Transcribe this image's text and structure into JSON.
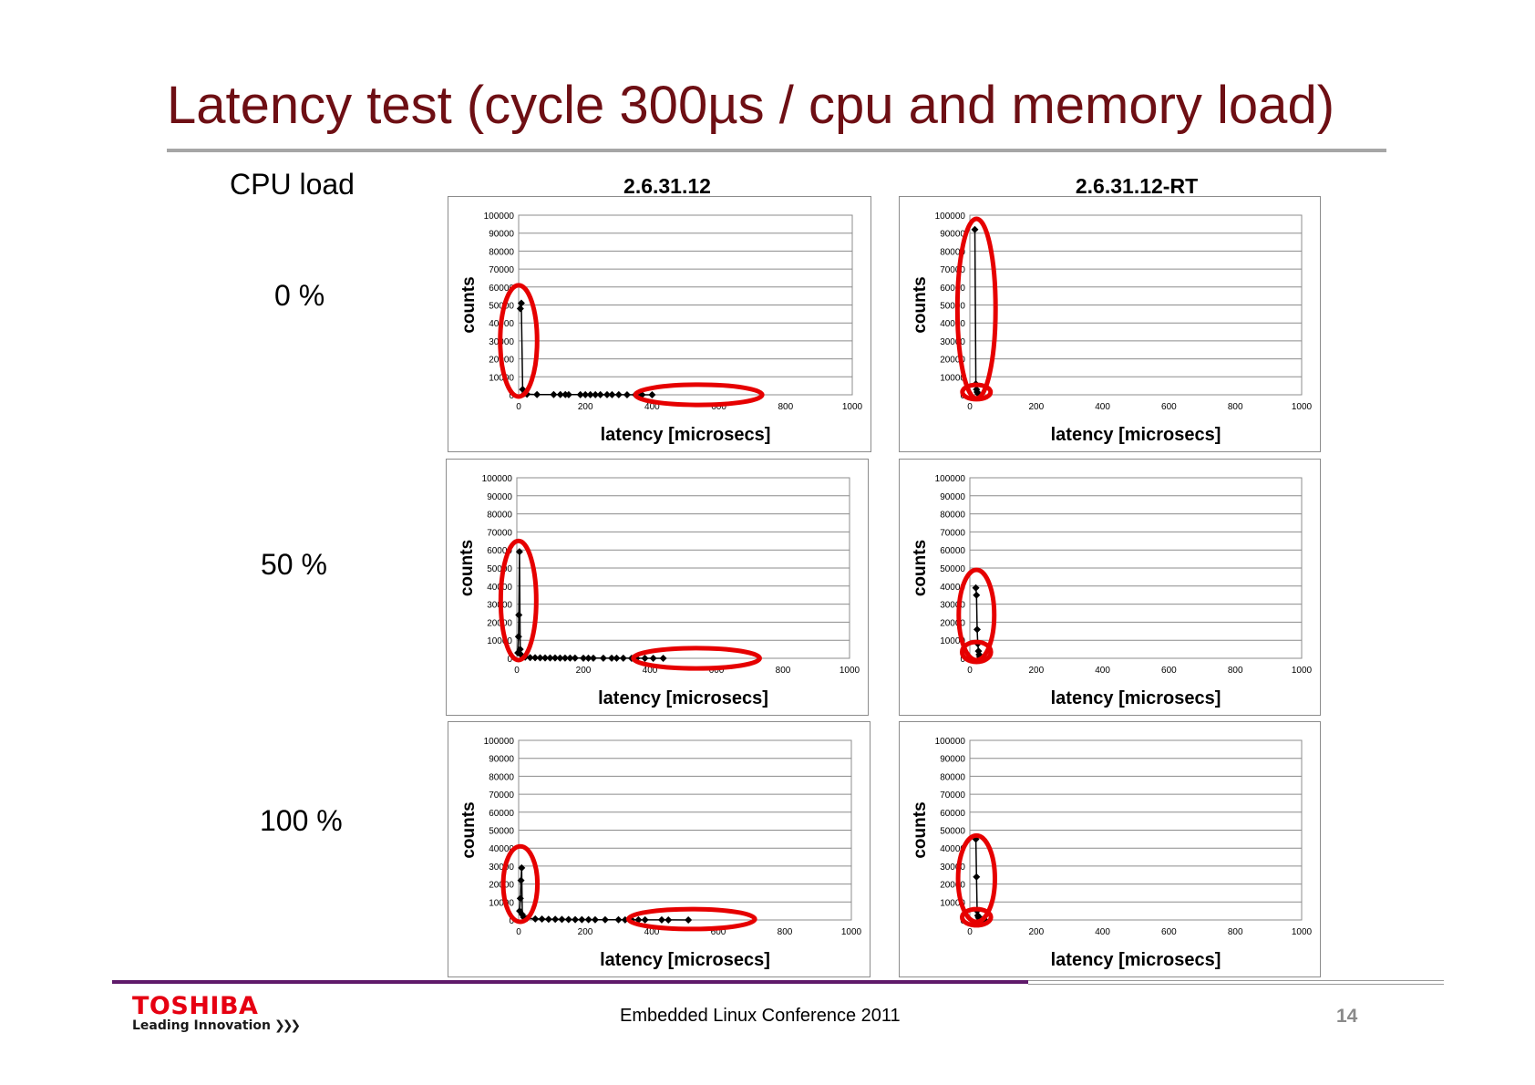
{
  "slide": {
    "title": "Latency test (cycle 300µs / cpu and memory load)",
    "cpu_load_label": "CPU load",
    "rows": [
      "0 %",
      "50 %",
      "100 %"
    ],
    "columns": [
      "2.6.31.12",
      "2.6.31.12-RT"
    ]
  },
  "footer": {
    "logo": "TOSHIBA",
    "tagline": "Leading Innovation",
    "conference": "Embedded Linux Conference 2011",
    "page": "14"
  },
  "colors": {
    "title": "#6e0f14",
    "highlight": "#e60000",
    "logo": "#e60012",
    "footer_rule": "#5f1a6a"
  },
  "chart_data": [
    {
      "type": "line",
      "column": "2.6.31.12",
      "row": "0 %",
      "xlabel": "latency [microsecs]",
      "ylabel": "counts",
      "xlim": [
        0,
        1000
      ],
      "ylim": [
        0,
        100000
      ],
      "xticks": [
        0,
        200,
        400,
        600,
        800,
        1000
      ],
      "yticks": [
        0,
        10000,
        20000,
        30000,
        40000,
        50000,
        60000,
        70000,
        80000,
        90000,
        100000
      ],
      "grid": true,
      "x": [
        5,
        8,
        12,
        18,
        25,
        55,
        105,
        125,
        140,
        150,
        185,
        200,
        215,
        230,
        245,
        265,
        280,
        300,
        325,
        350,
        370,
        400
      ],
      "y": [
        48000,
        51000,
        3000,
        800,
        300,
        150,
        120,
        100,
        100,
        90,
        80,
        80,
        70,
        70,
        60,
        60,
        50,
        40,
        30,
        20,
        10,
        10
      ]
    },
    {
      "type": "line",
      "column": "2.6.31.12-RT",
      "row": "0 %",
      "xlabel": "latency [microsecs]",
      "ylabel": "counts",
      "xlim": [
        0,
        1000
      ],
      "ylim": [
        0,
        100000
      ],
      "xticks": [
        0,
        200,
        400,
        600,
        800,
        1000
      ],
      "yticks": [
        0,
        10000,
        20000,
        30000,
        40000,
        50000,
        60000,
        70000,
        80000,
        90000,
        100000
      ],
      "grid": true,
      "x": [
        15,
        18,
        20,
        22,
        25
      ],
      "y": [
        92000,
        6000,
        3000,
        1500,
        500
      ]
    },
    {
      "type": "line",
      "column": "2.6.31.12",
      "row": "50 %",
      "xlabel": "latency [microsecs]",
      "ylabel": "counts",
      "xlim": [
        0,
        1000
      ],
      "ylim": [
        0,
        100000
      ],
      "xticks": [
        0,
        200,
        400,
        600,
        800,
        1000
      ],
      "yticks": [
        0,
        10000,
        20000,
        30000,
        40000,
        50000,
        60000,
        70000,
        80000,
        90000,
        100000
      ],
      "grid": true,
      "x": [
        3,
        5,
        6,
        8,
        10,
        15,
        25,
        40,
        55,
        70,
        85,
        100,
        115,
        130,
        145,
        160,
        175,
        200,
        215,
        230,
        260,
        285,
        300,
        320,
        345,
        360,
        385,
        410,
        440
      ],
      "y": [
        3000,
        12000,
        24000,
        59000,
        5000,
        1500,
        600,
        400,
        300,
        250,
        200,
        180,
        160,
        150,
        130,
        120,
        100,
        90,
        80,
        80,
        70,
        60,
        50,
        40,
        30,
        30,
        20,
        20,
        10
      ]
    },
    {
      "type": "line",
      "column": "2.6.31.12-RT",
      "row": "50 %",
      "xlabel": "latency [microsecs]",
      "ylabel": "counts",
      "xlim": [
        0,
        1000
      ],
      "ylim": [
        0,
        100000
      ],
      "xticks": [
        0,
        200,
        400,
        600,
        800,
        1000
      ],
      "yticks": [
        0,
        10000,
        20000,
        30000,
        40000,
        50000,
        60000,
        70000,
        80000,
        90000,
        100000
      ],
      "grid": true,
      "x": [
        18,
        20,
        22,
        24,
        26,
        28,
        30,
        35,
        40
      ],
      "y": [
        39000,
        35000,
        16000,
        8000,
        4000,
        2000,
        800,
        300,
        100
      ]
    },
    {
      "type": "line",
      "column": "2.6.31.12",
      "row": "100 %",
      "xlabel": "latency [microsecs]",
      "ylabel": "counts",
      "xlim": [
        0,
        1000
      ],
      "ylim": [
        0,
        100000
      ],
      "xticks": [
        0,
        200,
        400,
        600,
        800,
        1000
      ],
      "yticks": [
        0,
        10000,
        20000,
        30000,
        40000,
        50000,
        60000,
        70000,
        80000,
        90000,
        100000
      ],
      "grid": true,
      "x": [
        3,
        5,
        7,
        9,
        11,
        15,
        25,
        50,
        70,
        90,
        110,
        130,
        150,
        170,
        190,
        210,
        230,
        260,
        300,
        320,
        340,
        360,
        380,
        430,
        450,
        510
      ],
      "y": [
        5000,
        12000,
        22000,
        29000,
        3000,
        1500,
        900,
        600,
        500,
        400,
        350,
        300,
        260,
        220,
        200,
        180,
        150,
        120,
        100,
        90,
        80,
        70,
        60,
        40,
        30,
        10
      ]
    },
    {
      "type": "line",
      "column": "2.6.31.12-RT",
      "row": "100 %",
      "xlabel": "latency [microsecs]",
      "ylabel": "counts",
      "xlim": [
        0,
        1000
      ],
      "ylim": [
        0,
        100000
      ],
      "xticks": [
        0,
        200,
        400,
        600,
        800,
        1000
      ],
      "yticks": [
        0,
        10000,
        20000,
        30000,
        40000,
        50000,
        60000,
        70000,
        80000,
        90000,
        100000
      ],
      "grid": true,
      "x": [
        18,
        20,
        22,
        24,
        26,
        28,
        32,
        36,
        40,
        45
      ],
      "y": [
        45000,
        24000,
        5000,
        2500,
        1500,
        900,
        500,
        300,
        150,
        50
      ]
    }
  ]
}
